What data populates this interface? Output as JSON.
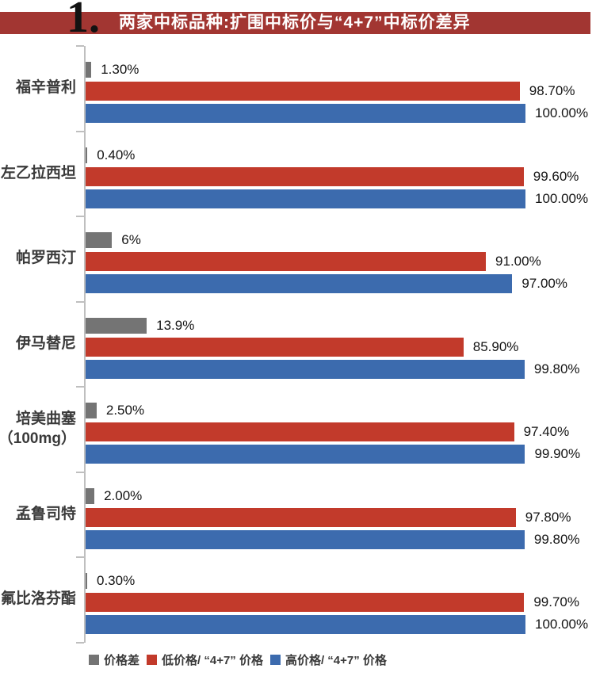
{
  "header": {
    "number": "1.",
    "title": "两家中标品种:扩围中标价与“4+7”中标价差异"
  },
  "colors": {
    "header_band": "#A23632",
    "price_diff_gray": "#747474",
    "low_price_red": "#C23A2B",
    "high_price_blue": "#3C6BAE",
    "axis_gray": "#BFBFBF"
  },
  "chart_data": {
    "type": "bar",
    "orientation": "horizontal",
    "title": "两家中标品种:扩围中标价与“4+7”中标价差异",
    "xlabel": "",
    "ylabel": "",
    "xlim": [
      0,
      100
    ],
    "grid": false,
    "legend_position": "bottom",
    "categories": [
      "福辛普利",
      "左乙拉西坦",
      "帕罗西汀",
      "伊马替尼",
      "培美曲塞\n（100mg）",
      "孟鲁司特",
      "氟比洛芬酯"
    ],
    "series": [
      {
        "name": "价格差",
        "key": "price-diff",
        "color": "#747474",
        "values": [
          1.3,
          0.4,
          6,
          13.9,
          2.5,
          2.0,
          0.3
        ],
        "labels": [
          "1.30%",
          "0.40%",
          "6%",
          "13.9%",
          "2.50%",
          "2.00%",
          "0.30%"
        ]
      },
      {
        "name": "低价格/ “4+7” 价格",
        "key": "low-price",
        "color": "#C23A2B",
        "values": [
          98.7,
          99.6,
          91.0,
          85.9,
          97.4,
          97.8,
          99.7
        ],
        "labels": [
          "98.70%",
          "99.60%",
          "91.00%",
          "85.90%",
          "97.40%",
          "97.80%",
          "99.70%"
        ]
      },
      {
        "name": "高价格/ “4+7” 价格",
        "key": "high-price",
        "color": "#3C6BAE",
        "values": [
          100.0,
          100.0,
          97.0,
          99.8,
          99.9,
          99.8,
          100.0
        ],
        "labels": [
          "100.00%",
          "100.00%",
          "97.00%",
          "99.80%",
          "99.90%",
          "99.80%",
          "100.00%"
        ]
      }
    ]
  }
}
